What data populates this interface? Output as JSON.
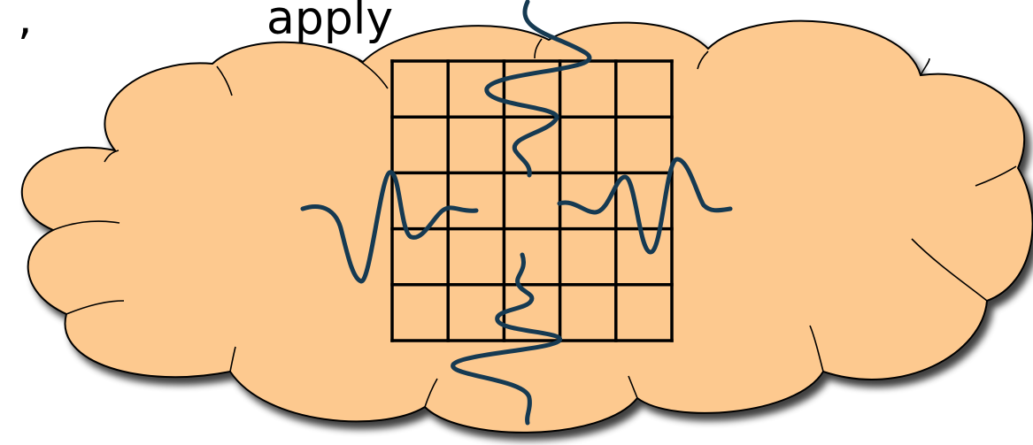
{
  "caption": {
    "partial_text": ",                apply"
  },
  "colors": {
    "cloud_fill": "#FDC98F",
    "cloud_stroke": "#000000",
    "grid_stroke": "#000000",
    "wave_stroke": "#163A52",
    "shadow": "#000000"
  },
  "grid": {
    "rows": 5,
    "columns": 5
  },
  "waves": [
    {
      "name": "top-wave",
      "enters_from": "top"
    },
    {
      "name": "left-wave",
      "enters_from": "left"
    },
    {
      "name": "right-wave",
      "enters_from": "right"
    },
    {
      "name": "bottom-wave",
      "enters_from": "bottom"
    }
  ]
}
